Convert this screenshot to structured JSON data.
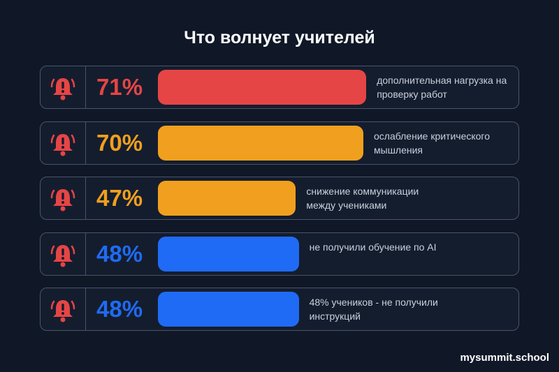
{
  "chart_data": {
    "type": "bar",
    "orientation": "horizontal",
    "title": "Что волнует учителей",
    "categories": [
      "дополнительная нагрузка на проверку работ",
      "ослабление критического мышления",
      "снижение коммуникации между учениками",
      "не получили обучение по AI",
      "48% учеников - не получили инструкций"
    ],
    "values": [
      71,
      70,
      47,
      48,
      48
    ],
    "value_labels": [
      "71%",
      "70%",
      "47%",
      "48%",
      "48%"
    ],
    "colors": [
      "#e64545",
      "#f0a01e",
      "#f0a01e",
      "#1f6bf5",
      "#1f6bf5"
    ]
  },
  "watermark": "mysummit.school"
}
